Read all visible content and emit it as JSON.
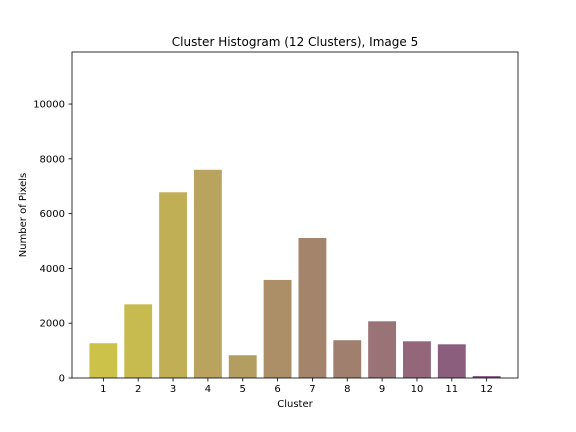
{
  "chart_data": {
    "type": "bar",
    "title": "Cluster Histogram (12 Clusters), Image 5",
    "xlabel": "Cluster",
    "ylabel": "Number of Pixels",
    "categories": [
      "1",
      "2",
      "3",
      "4",
      "5",
      "6",
      "7",
      "8",
      "9",
      "10",
      "11",
      "12"
    ],
    "values": [
      1270,
      2690,
      6780,
      7600,
      830,
      3580,
      5110,
      1380,
      2070,
      1340,
      1230,
      70
    ],
    "colors": [
      "#ccc24a",
      "#c7bb4f",
      "#c1af56",
      "#b9a35e",
      "#b49d60",
      "#ac8f66",
      "#a5846c",
      "#a07f6f",
      "#997375",
      "#936779",
      "#8b5e7e",
      "#865584"
    ],
    "ylim": [
      0,
      11900
    ],
    "yticks": [
      0,
      2000,
      4000,
      6000,
      8000,
      10000
    ],
    "grid": false,
    "legend": false
  }
}
